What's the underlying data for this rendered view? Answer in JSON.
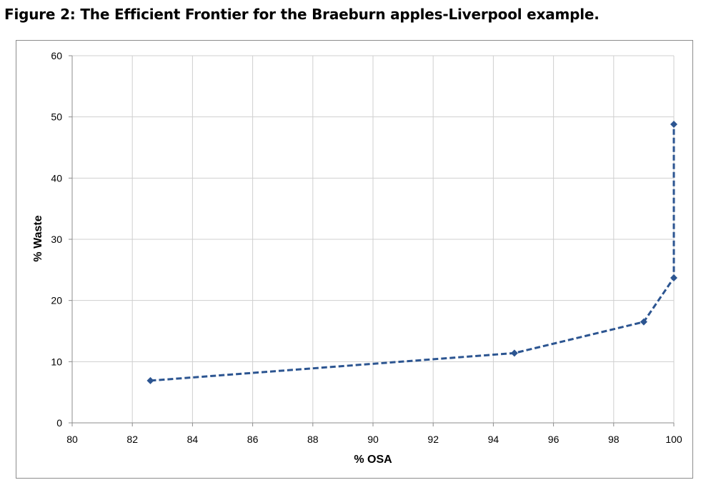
{
  "figure_title": "Figure 2: The Efficient Frontier for the Braeburn apples-Liverpool example.",
  "colors": {
    "series": "#2c5591",
    "grid": "#cfcfcf",
    "axis": "#8c8c8c",
    "frame": "#8c8c8c"
  },
  "chart_data": {
    "type": "line",
    "title": "",
    "xlabel": "% OSA",
    "ylabel": "% Waste",
    "xlim": [
      80,
      100
    ],
    "ylim": [
      0,
      60
    ],
    "xticks": [
      80,
      82,
      84,
      86,
      88,
      90,
      92,
      94,
      96,
      98,
      100
    ],
    "yticks": [
      0,
      10,
      20,
      30,
      40,
      50,
      60
    ],
    "grid": true,
    "legend": "none",
    "series": [
      {
        "line_style": "dashed",
        "marker": "diamond",
        "x": [
          82.6,
          94.7,
          99.0,
          100.0,
          100.0
        ],
        "y": [
          6.9,
          11.4,
          16.5,
          23.7,
          48.8
        ]
      }
    ]
  }
}
